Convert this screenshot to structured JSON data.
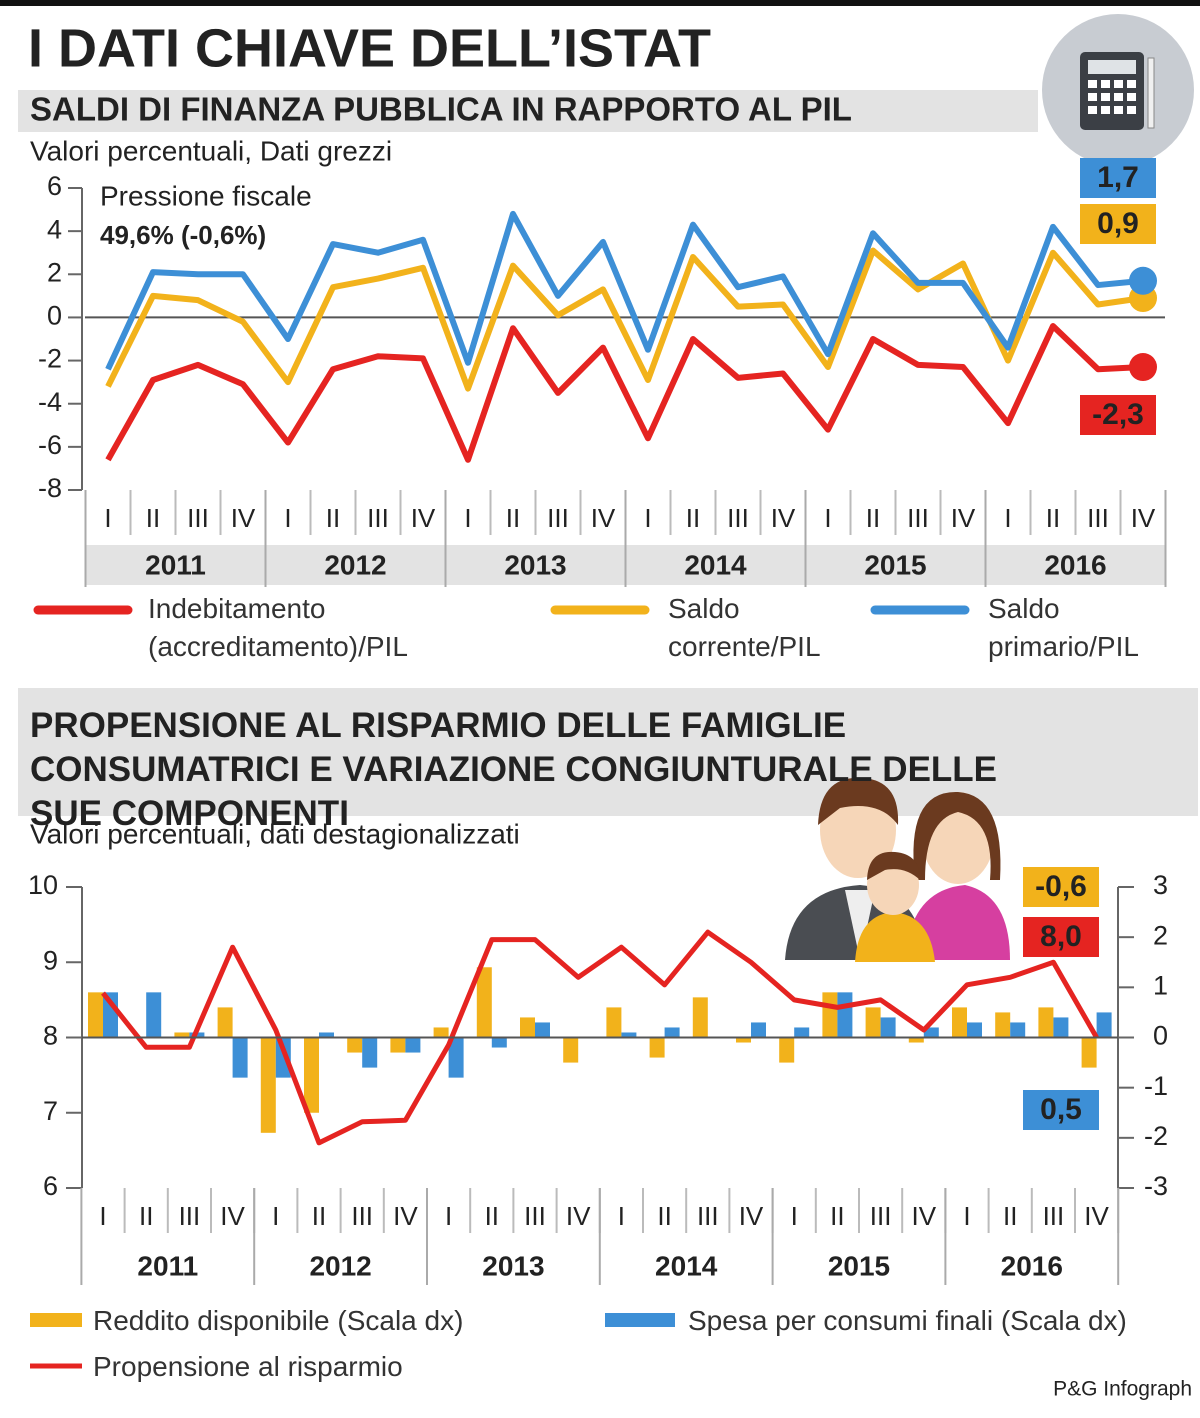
{
  "header": {
    "title": "I DATI CHIAVE DELL’ISTAT"
  },
  "credit": "P&G Infograph",
  "chart_data": [
    {
      "type": "line",
      "title": "SALDI DI FINANZA PUBBLICA IN RAPPORTO AL PIL",
      "subtitle": "Valori percentuali, Dati grezzi",
      "annotation": {
        "label": "Pressione fiscale",
        "value": "49,6% (-0,6%)"
      },
      "categories": [
        "I",
        "II",
        "III",
        "IV",
        "I",
        "II",
        "III",
        "IV",
        "I",
        "II",
        "III",
        "IV",
        "I",
        "II",
        "III",
        "IV",
        "I",
        "II",
        "III",
        "IV",
        "I",
        "II",
        "III",
        "IV"
      ],
      "groups": [
        "2011",
        "2012",
        "2013",
        "2014",
        "2015",
        "2016"
      ],
      "ylim": [
        -8,
        6
      ],
      "yticks": [
        -8,
        -6,
        -4,
        -2,
        0,
        2,
        4,
        6
      ],
      "series": [
        {
          "name": "Indebitamento (accreditamento)/PIL",
          "color": "#e52421",
          "values": [
            -6.6,
            -2.9,
            -2.2,
            -3.1,
            -5.8,
            -2.4,
            -1.8,
            -1.9,
            -6.6,
            -0.5,
            -3.5,
            -1.4,
            -5.6,
            -1.0,
            -2.8,
            -2.6,
            -5.2,
            -1.0,
            -2.2,
            -2.3,
            -4.9,
            -0.4,
            -2.4,
            -2.3
          ],
          "value_labels": [
            null,
            null,
            null,
            null,
            null,
            null,
            null,
            null,
            null,
            null,
            null,
            null,
            null,
            null,
            null,
            null,
            null,
            null,
            null,
            null,
            null,
            null,
            null,
            "-2,3"
          ]
        },
        {
          "name": "Saldo corrente/PIL",
          "color": "#f2b21b",
          "values": [
            -3.2,
            1.0,
            0.8,
            -0.2,
            -3.0,
            1.4,
            1.8,
            2.3,
            -3.3,
            2.4,
            0.1,
            1.3,
            -2.9,
            2.8,
            0.5,
            0.6,
            -2.3,
            3.1,
            1.3,
            2.5,
            -2.0,
            3.0,
            0.6,
            0.9
          ],
          "value_labels": [
            null,
            null,
            null,
            null,
            null,
            null,
            null,
            null,
            null,
            null,
            null,
            null,
            null,
            null,
            null,
            null,
            null,
            null,
            null,
            null,
            null,
            null,
            null,
            "0,9"
          ]
        },
        {
          "name": "Saldo primario/PIL",
          "color": "#3d8fd6",
          "values": [
            -2.4,
            2.1,
            2.0,
            2.0,
            -1.0,
            3.4,
            3.0,
            3.6,
            -2.1,
            4.8,
            1.0,
            3.5,
            -1.5,
            4.3,
            1.4,
            1.9,
            -1.7,
            3.9,
            1.6,
            1.6,
            -1.4,
            4.2,
            1.5,
            1.7
          ],
          "value_labels": [
            null,
            null,
            null,
            null,
            null,
            null,
            null,
            null,
            null,
            null,
            null,
            null,
            null,
            null,
            null,
            null,
            null,
            null,
            null,
            null,
            null,
            null,
            null,
            "1,7"
          ]
        }
      ]
    },
    {
      "type": "combo",
      "title": "PROPENSIONE AL RISPARMIO DELLE FAMIGLIE CONSUMATRICI E VARIAZIONE CONGIUNTURALE DELLE SUE COMPONENTI",
      "subtitle": "Valori percentuali, dati destagionalizzati",
      "categories": [
        "I",
        "II",
        "III",
        "IV",
        "I",
        "II",
        "III",
        "IV",
        "I",
        "II",
        "III",
        "IV",
        "I",
        "II",
        "III",
        "IV",
        "I",
        "II",
        "III",
        "IV",
        "I",
        "II",
        "III",
        "IV"
      ],
      "groups": [
        "2011",
        "2012",
        "2013",
        "2014",
        "2015",
        "2016"
      ],
      "ylim": [
        6,
        10
      ],
      "yticks": [
        6,
        7,
        8,
        9,
        10
      ],
      "y2lim": [
        -3,
        3
      ],
      "y2ticks": [
        -3,
        -2,
        -1,
        0,
        1,
        2,
        3
      ],
      "series": [
        {
          "name": "Reddito disponibile (Scala dx)",
          "color": "#f2b21b",
          "kind": "bar",
          "axis": "y2",
          "values": [
            0.9,
            0.0,
            0.1,
            0.6,
            -1.9,
            -1.5,
            -0.3,
            -0.3,
            0.2,
            1.4,
            0.4,
            -0.5,
            0.6,
            -0.4,
            0.8,
            -0.1,
            -0.5,
            0.9,
            0.6,
            -0.1,
            0.6,
            0.5,
            0.6,
            -0.6
          ],
          "value_labels": [
            null,
            null,
            null,
            null,
            null,
            null,
            null,
            null,
            null,
            null,
            null,
            null,
            null,
            null,
            null,
            null,
            null,
            null,
            null,
            null,
            null,
            null,
            null,
            "-0,6"
          ]
        },
        {
          "name": "Spesa per consumi finali (Scala dx)",
          "color": "#3d8fd6",
          "kind": "bar",
          "axis": "y2",
          "values": [
            0.9,
            0.9,
            0.1,
            -0.8,
            -0.8,
            0.1,
            -0.6,
            -0.3,
            -0.8,
            -0.2,
            0.3,
            0.0,
            0.1,
            0.2,
            0.0,
            0.3,
            0.2,
            0.9,
            0.4,
            0.2,
            0.3,
            0.3,
            0.4,
            0.5
          ],
          "value_labels": [
            null,
            null,
            null,
            null,
            null,
            null,
            null,
            null,
            null,
            null,
            null,
            null,
            null,
            null,
            null,
            null,
            null,
            null,
            null,
            null,
            null,
            null,
            null,
            "0,5"
          ]
        },
        {
          "name": "Propensione al risparmio",
          "color": "#e52421",
          "kind": "line",
          "axis": "y",
          "values": [
            8.59,
            7.87,
            7.87,
            9.2,
            8.1,
            6.6,
            6.88,
            6.9,
            7.9,
            9.3,
            9.3,
            8.8,
            9.2,
            8.7,
            9.4,
            9.0,
            8.5,
            8.4,
            8.5,
            8.1,
            8.7,
            8.8,
            9.0,
            8.0
          ],
          "value_labels": [
            null,
            null,
            null,
            null,
            null,
            null,
            null,
            null,
            null,
            null,
            null,
            null,
            null,
            null,
            null,
            null,
            null,
            null,
            null,
            null,
            null,
            null,
            null,
            "8,0"
          ]
        }
      ]
    }
  ]
}
